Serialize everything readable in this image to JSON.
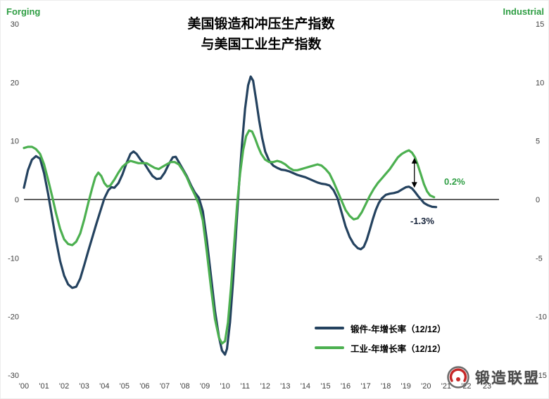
{
  "header": {
    "title_line1": "美国锻造和冲压生产指数",
    "title_line2": "与美国工业生产指数",
    "left_axis_title": "Forging",
    "right_axis_title": "Industrial"
  },
  "legend": {
    "forging": "锻件-年增长率（12/12）",
    "industrial": "工业-年增长率（12/12）"
  },
  "annotations": {
    "industrial_value": "0.2%",
    "forging_value": "-1.3%"
  },
  "brand": {
    "name": "锻造联盟"
  },
  "colors": {
    "forging_line": "#24425f",
    "industrial_line": "#4cb050",
    "accent_green": "#2f9e44",
    "axis_text": "#404040",
    "zero_line": "#000000"
  },
  "chart_data": {
    "type": "line",
    "title": "美国锻造和冲压生产指数 与美国工业生产指数",
    "grid": false,
    "legend_position": "inside-bottom-right",
    "left_axis": {
      "title": "Forging",
      "range": [
        -30,
        30
      ],
      "ticks": [
        30,
        20,
        10,
        0,
        -10,
        -20,
        -30
      ]
    },
    "right_axis": {
      "title": "Industrial",
      "range": [
        -15,
        15
      ],
      "ticks": [
        15,
        10,
        5,
        0,
        -5,
        -10,
        -15
      ]
    },
    "x_axis": {
      "start_year": 2000,
      "labels": [
        "'00",
        "'01",
        "'02",
        "'03",
        "'04",
        "'05",
        "'06",
        "'07",
        "'08",
        "'09",
        "'10",
        "'11",
        "'12",
        "'13",
        "'14",
        "'15",
        "'16",
        "'17",
        "'18",
        "'19",
        "'20",
        "'21",
        "'22",
        "'23"
      ]
    },
    "series": [
      {
        "name": "锻件-年增长率（12/12）",
        "axis": "left",
        "color": "#24425f",
        "end_label": "-1.3%",
        "points": [
          [
            2000.0,
            2.0
          ],
          [
            2000.2,
            5.0
          ],
          [
            2000.4,
            6.8
          ],
          [
            2000.6,
            7.4
          ],
          [
            2000.8,
            7.0
          ],
          [
            2001.0,
            4.5
          ],
          [
            2001.2,
            1.0
          ],
          [
            2001.4,
            -3.0
          ],
          [
            2001.6,
            -7.0
          ],
          [
            2001.8,
            -10.5
          ],
          [
            2002.0,
            -13.0
          ],
          [
            2002.2,
            -14.5
          ],
          [
            2002.4,
            -15.1
          ],
          [
            2002.6,
            -14.9
          ],
          [
            2002.8,
            -13.5
          ],
          [
            2003.0,
            -11.2
          ],
          [
            2003.2,
            -8.8
          ],
          [
            2003.4,
            -6.5
          ],
          [
            2003.6,
            -4.2
          ],
          [
            2003.8,
            -2.0
          ],
          [
            2004.0,
            0.2
          ],
          [
            2004.2,
            1.6
          ],
          [
            2004.35,
            2.1
          ],
          [
            2004.5,
            2.0
          ],
          [
            2004.7,
            2.8
          ],
          [
            2004.9,
            4.3
          ],
          [
            2005.1,
            6.2
          ],
          [
            2005.3,
            7.8
          ],
          [
            2005.45,
            8.2
          ],
          [
            2005.6,
            7.8
          ],
          [
            2005.8,
            6.8
          ],
          [
            2006.0,
            6.1
          ],
          [
            2006.2,
            5.0
          ],
          [
            2006.4,
            4.0
          ],
          [
            2006.6,
            3.5
          ],
          [
            2006.8,
            3.6
          ],
          [
            2007.0,
            4.6
          ],
          [
            2007.2,
            6.0
          ],
          [
            2007.4,
            7.2
          ],
          [
            2007.55,
            7.3
          ],
          [
            2007.7,
            6.4
          ],
          [
            2007.9,
            5.2
          ],
          [
            2008.1,
            4.0
          ],
          [
            2008.3,
            2.5
          ],
          [
            2008.5,
            1.2
          ],
          [
            2008.7,
            0.3
          ],
          [
            2008.9,
            -2.0
          ],
          [
            2009.1,
            -7.0
          ],
          [
            2009.3,
            -13.0
          ],
          [
            2009.5,
            -19.0
          ],
          [
            2009.7,
            -23.5
          ],
          [
            2009.85,
            -25.8
          ],
          [
            2010.0,
            -26.5
          ],
          [
            2010.1,
            -25.5
          ],
          [
            2010.25,
            -21.0
          ],
          [
            2010.4,
            -14.0
          ],
          [
            2010.55,
            -5.5
          ],
          [
            2010.7,
            2.5
          ],
          [
            2010.85,
            9.5
          ],
          [
            2011.0,
            15.5
          ],
          [
            2011.15,
            19.5
          ],
          [
            2011.28,
            21.0
          ],
          [
            2011.4,
            20.3
          ],
          [
            2011.55,
            17.0
          ],
          [
            2011.7,
            13.5
          ],
          [
            2011.85,
            10.5
          ],
          [
            2012.0,
            8.2
          ],
          [
            2012.2,
            6.6
          ],
          [
            2012.4,
            5.8
          ],
          [
            2012.6,
            5.4
          ],
          [
            2012.8,
            5.1
          ],
          [
            2013.0,
            5.0
          ],
          [
            2013.2,
            4.8
          ],
          [
            2013.4,
            4.5
          ],
          [
            2013.6,
            4.2
          ],
          [
            2013.8,
            4.0
          ],
          [
            2014.0,
            3.8
          ],
          [
            2014.2,
            3.5
          ],
          [
            2014.4,
            3.2
          ],
          [
            2014.6,
            2.9
          ],
          [
            2014.8,
            2.7
          ],
          [
            2015.0,
            2.6
          ],
          [
            2015.2,
            2.4
          ],
          [
            2015.4,
            1.6
          ],
          [
            2015.6,
            0.2
          ],
          [
            2015.8,
            -2.2
          ],
          [
            2016.0,
            -4.6
          ],
          [
            2016.2,
            -6.4
          ],
          [
            2016.4,
            -7.6
          ],
          [
            2016.6,
            -8.3
          ],
          [
            2016.75,
            -8.5
          ],
          [
            2016.9,
            -8.1
          ],
          [
            2017.05,
            -6.9
          ],
          [
            2017.2,
            -5.2
          ],
          [
            2017.35,
            -3.4
          ],
          [
            2017.5,
            -1.8
          ],
          [
            2017.65,
            -0.6
          ],
          [
            2017.8,
            0.2
          ],
          [
            2018.0,
            0.8
          ],
          [
            2018.2,
            1.0
          ],
          [
            2018.4,
            1.1
          ],
          [
            2018.6,
            1.3
          ],
          [
            2018.8,
            1.7
          ],
          [
            2019.0,
            2.1
          ],
          [
            2019.15,
            2.2
          ],
          [
            2019.3,
            1.9
          ],
          [
            2019.45,
            1.3
          ],
          [
            2019.6,
            0.6
          ],
          [
            2019.75,
            0.0
          ],
          [
            2019.9,
            -0.6
          ],
          [
            2020.1,
            -1.0
          ],
          [
            2020.3,
            -1.25
          ],
          [
            2020.5,
            -1.3
          ]
        ]
      },
      {
        "name": "工业-年增长率（12/12）",
        "axis": "right",
        "color": "#4cb050",
        "end_label": "0.2%",
        "points": [
          [
            2000.0,
            4.4
          ],
          [
            2000.2,
            4.5
          ],
          [
            2000.4,
            4.5
          ],
          [
            2000.6,
            4.3
          ],
          [
            2000.8,
            3.9
          ],
          [
            2001.0,
            3.0
          ],
          [
            2001.2,
            1.7
          ],
          [
            2001.4,
            0.3
          ],
          [
            2001.6,
            -1.2
          ],
          [
            2001.8,
            -2.5
          ],
          [
            2002.0,
            -3.4
          ],
          [
            2002.2,
            -3.8
          ],
          [
            2002.4,
            -3.9
          ],
          [
            2002.6,
            -3.6
          ],
          [
            2002.8,
            -2.9
          ],
          [
            2003.0,
            -1.7
          ],
          [
            2003.2,
            -0.3
          ],
          [
            2003.4,
            1.0
          ],
          [
            2003.55,
            1.9
          ],
          [
            2003.7,
            2.3
          ],
          [
            2003.85,
            2.0
          ],
          [
            2004.0,
            1.4
          ],
          [
            2004.15,
            1.1
          ],
          [
            2004.3,
            1.2
          ],
          [
            2004.5,
            1.7
          ],
          [
            2004.7,
            2.3
          ],
          [
            2004.9,
            2.8
          ],
          [
            2005.1,
            3.1
          ],
          [
            2005.3,
            3.3
          ],
          [
            2005.5,
            3.2
          ],
          [
            2005.7,
            3.1
          ],
          [
            2005.9,
            3.1
          ],
          [
            2006.1,
            3.1
          ],
          [
            2006.3,
            2.9
          ],
          [
            2006.5,
            2.7
          ],
          [
            2006.7,
            2.6
          ],
          [
            2006.9,
            2.8
          ],
          [
            2007.1,
            3.0
          ],
          [
            2007.3,
            3.2
          ],
          [
            2007.5,
            3.2
          ],
          [
            2007.7,
            3.0
          ],
          [
            2007.9,
            2.5
          ],
          [
            2008.1,
            1.9
          ],
          [
            2008.3,
            1.1
          ],
          [
            2008.5,
            0.4
          ],
          [
            2008.7,
            -0.4
          ],
          [
            2008.9,
            -1.8
          ],
          [
            2009.1,
            -4.5
          ],
          [
            2009.3,
            -7.5
          ],
          [
            2009.5,
            -10.2
          ],
          [
            2009.7,
            -11.8
          ],
          [
            2009.85,
            -12.3
          ],
          [
            2010.0,
            -12.1
          ],
          [
            2010.15,
            -10.5
          ],
          [
            2010.3,
            -7.5
          ],
          [
            2010.45,
            -4.0
          ],
          [
            2010.6,
            -0.5
          ],
          [
            2010.75,
            2.2
          ],
          [
            2010.9,
            4.2
          ],
          [
            2011.05,
            5.4
          ],
          [
            2011.2,
            5.9
          ],
          [
            2011.35,
            5.8
          ],
          [
            2011.5,
            5.2
          ],
          [
            2011.65,
            4.5
          ],
          [
            2011.8,
            3.9
          ],
          [
            2012.0,
            3.4
          ],
          [
            2012.2,
            3.2
          ],
          [
            2012.4,
            3.2
          ],
          [
            2012.6,
            3.3
          ],
          [
            2012.8,
            3.2
          ],
          [
            2013.0,
            3.0
          ],
          [
            2013.2,
            2.7
          ],
          [
            2013.4,
            2.5
          ],
          [
            2013.6,
            2.5
          ],
          [
            2013.8,
            2.6
          ],
          [
            2014.0,
            2.7
          ],
          [
            2014.2,
            2.8
          ],
          [
            2014.4,
            2.9
          ],
          [
            2014.6,
            3.0
          ],
          [
            2014.8,
            2.9
          ],
          [
            2015.0,
            2.6
          ],
          [
            2015.2,
            2.2
          ],
          [
            2015.4,
            1.5
          ],
          [
            2015.6,
            0.7
          ],
          [
            2015.8,
            -0.1
          ],
          [
            2016.0,
            -0.9
          ],
          [
            2016.2,
            -1.4
          ],
          [
            2016.4,
            -1.7
          ],
          [
            2016.6,
            -1.6
          ],
          [
            2016.8,
            -1.1
          ],
          [
            2017.0,
            -0.4
          ],
          [
            2017.2,
            0.3
          ],
          [
            2017.4,
            0.9
          ],
          [
            2017.6,
            1.4
          ],
          [
            2017.8,
            1.8
          ],
          [
            2018.0,
            2.2
          ],
          [
            2018.2,
            2.6
          ],
          [
            2018.4,
            3.1
          ],
          [
            2018.6,
            3.6
          ],
          [
            2018.8,
            3.9
          ],
          [
            2019.0,
            4.1
          ],
          [
            2019.15,
            4.2
          ],
          [
            2019.3,
            4.0
          ],
          [
            2019.45,
            3.6
          ],
          [
            2019.6,
            2.9
          ],
          [
            2019.75,
            2.1
          ],
          [
            2019.9,
            1.3
          ],
          [
            2020.05,
            0.7
          ],
          [
            2020.2,
            0.35
          ],
          [
            2020.4,
            0.2
          ]
        ]
      }
    ],
    "arrow_annotation": {
      "x_year": 2019.42,
      "from_left_value": 7.1,
      "to_left_value": 2.0
    }
  }
}
